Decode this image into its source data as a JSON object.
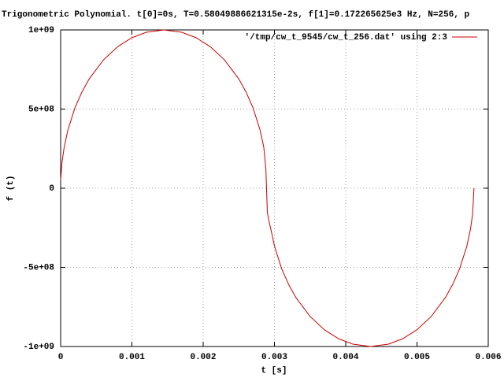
{
  "chart_data": {
    "type": "line",
    "title": "Trigonometric Polynomial.   t[0]=0s, T=0.58049886621315e-2s, f[1]=0.172265625e3 Hz, N=256, p",
    "xlabel": "t [s]",
    "ylabel": "f (t)",
    "x": [
      0,
      2e-05,
      5e-05,
      0.0001,
      0.0002,
      0.0003,
      0.0004,
      0.0006,
      0.0008,
      0.001,
      0.0012,
      0.00145,
      0.0017,
      0.0019,
      0.0021,
      0.0023,
      0.0025,
      0.0026,
      0.0027,
      0.0028,
      0.00285,
      0.00288,
      0.0029,
      0.00292,
      0.00295,
      0.003,
      0.0031,
      0.0032,
      0.0033,
      0.0035,
      0.0037,
      0.0039,
      0.0041,
      0.00435,
      0.0046,
      0.0048,
      0.005,
      0.0052,
      0.0054,
      0.0055,
      0.0056,
      0.0057,
      0.00575,
      0.00578,
      0.0058
    ],
    "series": [
      {
        "name": "'/tmp/cw_t_9545/cw_t_256.dat' using 2:3",
        "color": "#cc0000",
        "values": [
          50000000,
          165000000,
          260000000,
          365000000,
          507000000,
          609000000,
          690000000,
          810000000,
          894000000,
          951000000,
          985000000,
          1000000000,
          985000000,
          951000000,
          894000000,
          810000000,
          690000000,
          609000000,
          507000000,
          365000000,
          260000000,
          120000000,
          -150000000,
          -200000000,
          -260000000,
          -365000000,
          -507000000,
          -609000000,
          -690000000,
          -810000000,
          -894000000,
          -951000000,
          -985000000,
          -1000000000,
          -985000000,
          -951000000,
          -894000000,
          -810000000,
          -690000000,
          -609000000,
          -507000000,
          -365000000,
          -260000000,
          -165000000,
          0
        ]
      }
    ],
    "xlim": [
      0,
      0.006
    ],
    "xticks": [
      0,
      0.001,
      0.002,
      0.003,
      0.004,
      0.005,
      0.006
    ],
    "ylim": [
      -1000000000,
      1000000000
    ],
    "yticks": [
      {
        "value": -1000000000,
        "label": "-1e+09"
      },
      {
        "value": -500000000,
        "label": "-5e+08"
      },
      0,
      {
        "value": 500000000,
        "label": "5e+08"
      },
      {
        "value": 1000000000,
        "label": "1e+09"
      }
    ],
    "grid": true,
    "legend": "top-right"
  }
}
